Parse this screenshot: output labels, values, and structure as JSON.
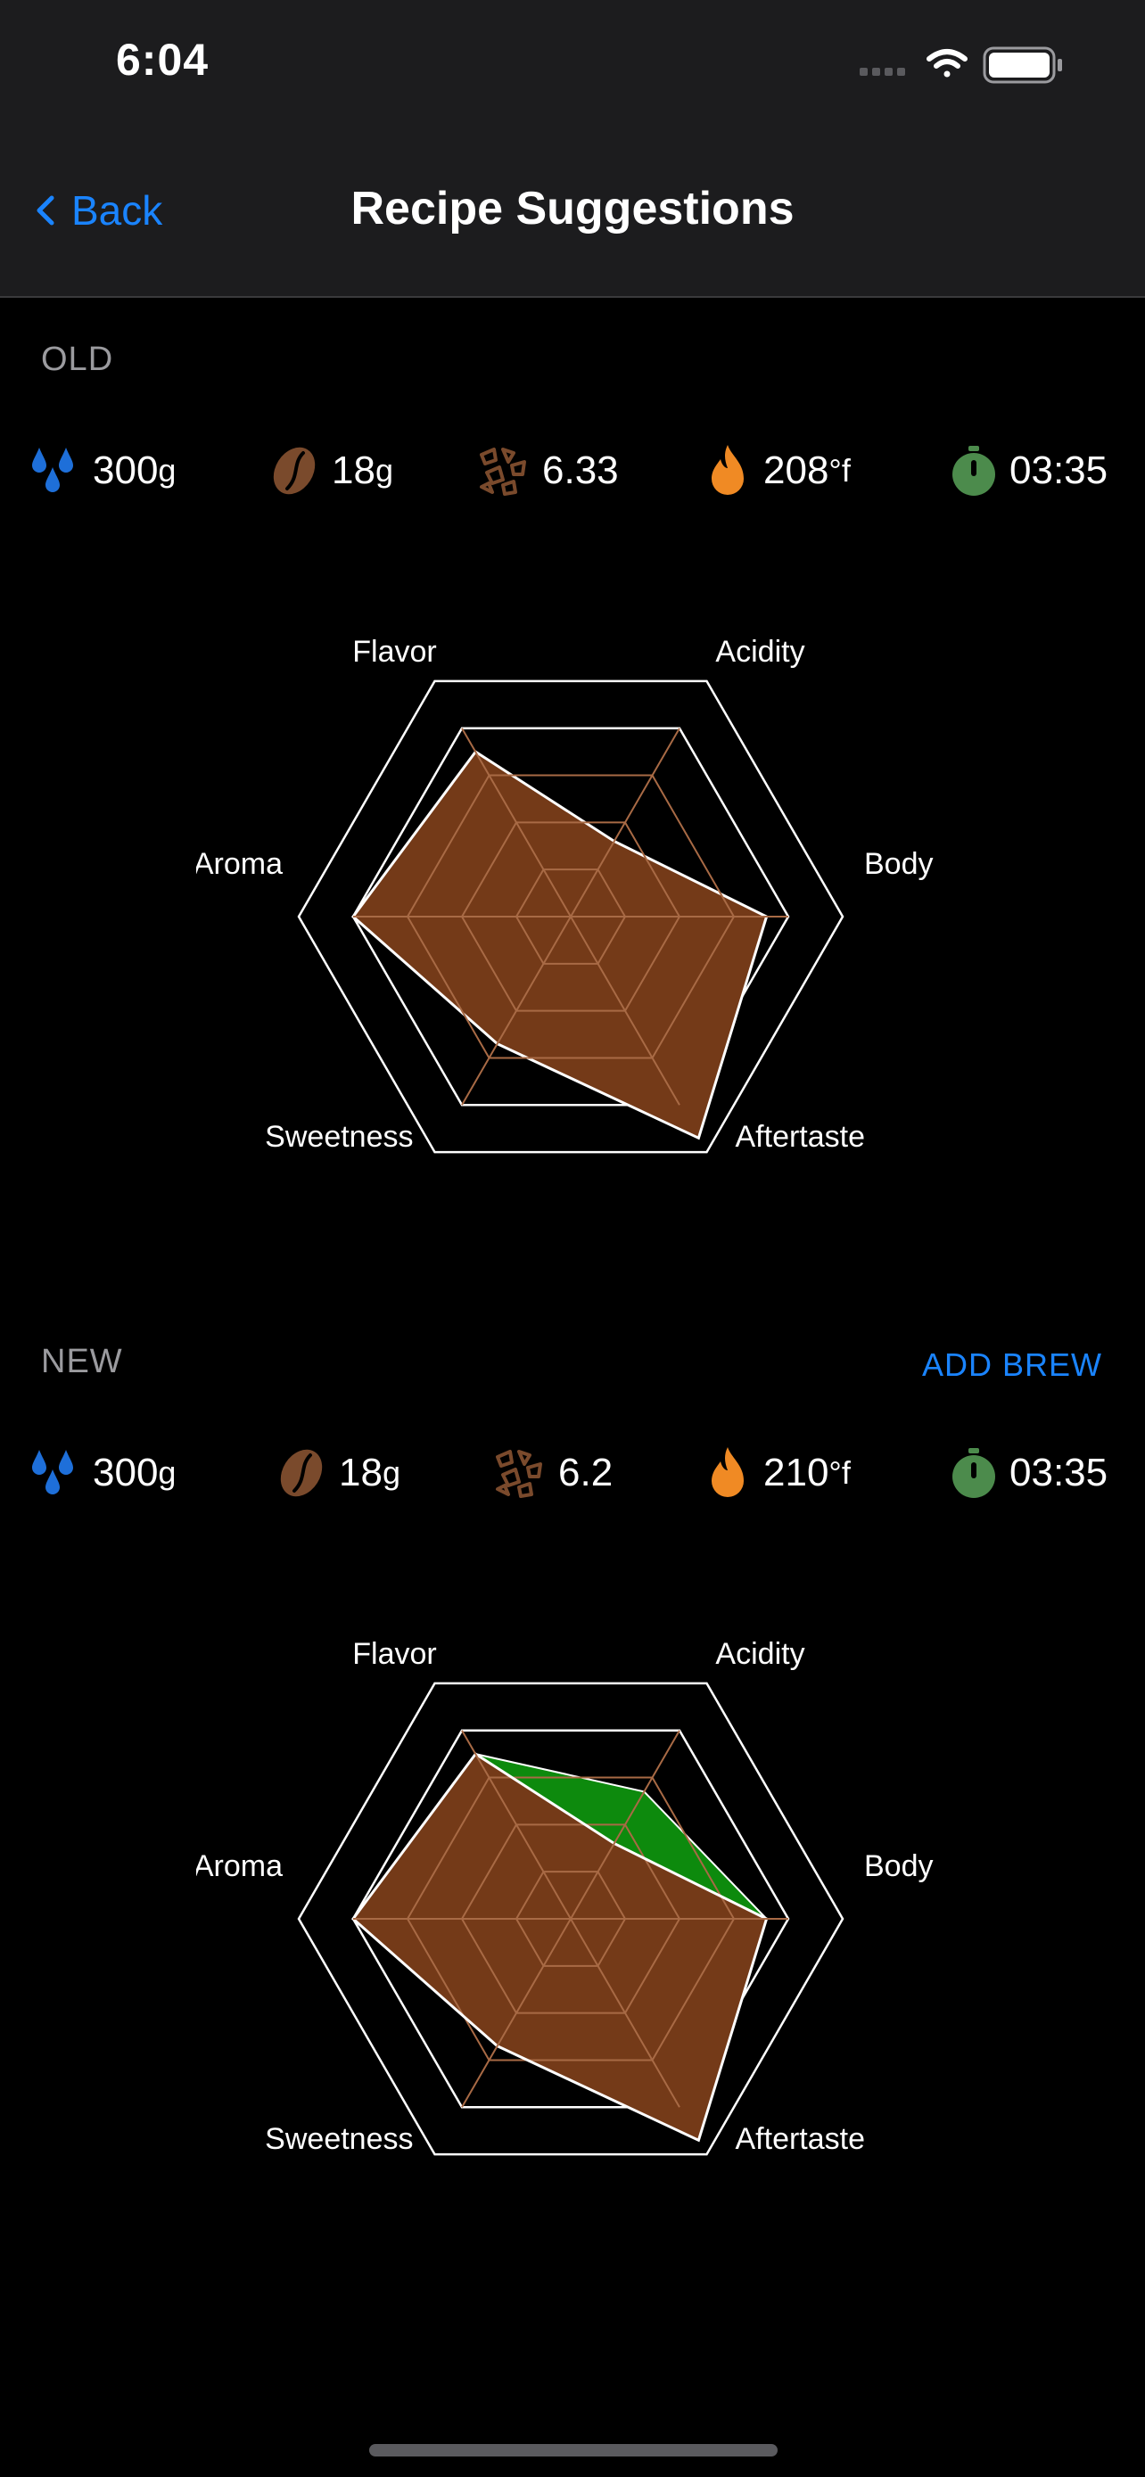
{
  "status": {
    "time": "6:04"
  },
  "nav": {
    "back_label": "Back",
    "title": "Recipe Suggestions"
  },
  "colors": {
    "accent": "#1a84ff",
    "water": "#1e6fd9",
    "coffee": "#7a4a2c",
    "heat": "#f08a24",
    "timer": "#4c8b4c",
    "profile_fill": "#743a18",
    "improvement": "#0d8a0d"
  },
  "old": {
    "label": "OLD",
    "params": {
      "water": "300",
      "water_unit": "g",
      "dose": "18",
      "dose_unit": "g",
      "grind": "6.33",
      "temp": "208",
      "temp_unit": "°f",
      "time": "03:35"
    }
  },
  "new": {
    "label": "NEW",
    "add_brew_label": "ADD BREW",
    "params": {
      "water": "300",
      "water_unit": "g",
      "dose": "18",
      "dose_unit": "g",
      "grind": "6.2",
      "temp": "210",
      "temp_unit": "°f",
      "time": "03:35"
    }
  },
  "chart_data": [
    {
      "type": "radar",
      "axes": [
        "Flavor",
        "Acidity",
        "Body",
        "Aftertaste",
        "Sweetness",
        "Aroma"
      ],
      "range": [
        0,
        5
      ],
      "series": [
        {
          "values": [
            3.5,
            1.6,
            3.6,
            4.7,
            2.7,
            4.0
          ]
        }
      ]
    },
    {
      "type": "radar",
      "axes": [
        "Flavor",
        "Acidity",
        "Body",
        "Aftertaste",
        "Sweetness",
        "Aroma"
      ],
      "range": [
        0,
        5
      ],
      "series": [
        {
          "values": [
            3.5,
            1.6,
            3.6,
            4.7,
            2.7,
            4.0
          ]
        },
        {
          "values": [
            3.5,
            2.7,
            3.6,
            4.5,
            2.7,
            4.0
          ]
        }
      ]
    }
  ]
}
